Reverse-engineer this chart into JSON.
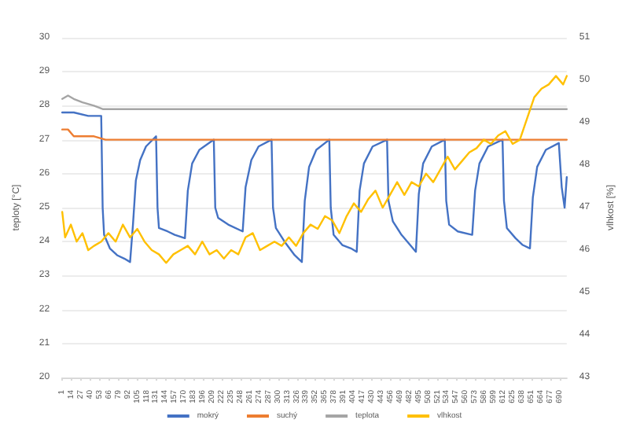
{
  "chart_data": {
    "type": "line",
    "ylabel": "teploty [°C]",
    "y2label": "vlhkost [%]",
    "xlim": [
      1,
      700
    ],
    "xticks": [
      1,
      14,
      27,
      40,
      53,
      66,
      79,
      92,
      105,
      118,
      131,
      144,
      157,
      170,
      183,
      196,
      209,
      222,
      235,
      248,
      261,
      274,
      287,
      300,
      313,
      326,
      339,
      352,
      365,
      378,
      391,
      404,
      417,
      430,
      443,
      456,
      469,
      482,
      495,
      508,
      521,
      534,
      547,
      560,
      573,
      586,
      599,
      612,
      625,
      638,
      651,
      664,
      677,
      690
    ],
    "ylim": [
      20,
      30
    ],
    "yticks": [
      20,
      21,
      22,
      23,
      24,
      25,
      26,
      27,
      28,
      29,
      30
    ],
    "y2lim": [
      43,
      51
    ],
    "y2ticks": [
      43,
      44,
      45,
      46,
      47,
      48,
      49,
      50,
      51
    ],
    "grid": "y",
    "legend": "bottom",
    "marker": "none",
    "line_style": "solid",
    "series": [
      {
        "name": "mokrý",
        "color": "#4472c4",
        "x": [
          1,
          17,
          37,
          55,
          57,
          59,
          67,
          77,
          87,
          95,
          99,
          103,
          109,
          117,
          131,
          133,
          135,
          147,
          157,
          171,
          175,
          181,
          191,
          211,
          213,
          217,
          231,
          251,
          255,
          263,
          273,
          291,
          293,
          297,
          309,
          323,
          333,
          337,
          343,
          353,
          371,
          373,
          377,
          389,
          401,
          409,
          413,
          419,
          431,
          451,
          453,
          459,
          471,
          483,
          491,
          495,
          501,
          513,
          531,
          533,
          537,
          549,
          569,
          573,
          579,
          591,
          611,
          613,
          617,
          629,
          639,
          649,
          653,
          659,
          671,
          689,
          693,
          697,
          700
        ],
        "values": [
          27.8,
          27.8,
          27.7,
          27.7,
          25.0,
          24.2,
          23.8,
          23.6,
          23.5,
          23.4,
          24.5,
          25.8,
          26.4,
          26.8,
          27.1,
          25.0,
          24.4,
          24.3,
          24.2,
          24.1,
          25.5,
          26.3,
          26.7,
          27.0,
          25.0,
          24.7,
          24.5,
          24.3,
          25.6,
          26.4,
          26.8,
          27.0,
          25.0,
          24.4,
          24.0,
          23.6,
          23.4,
          25.2,
          26.2,
          26.7,
          27.0,
          25.0,
          24.2,
          23.9,
          23.8,
          23.7,
          25.5,
          26.3,
          26.8,
          27.0,
          25.2,
          24.6,
          24.2,
          23.9,
          23.7,
          25.4,
          26.3,
          26.8,
          27.0,
          25.2,
          24.5,
          24.3,
          24.2,
          25.5,
          26.3,
          26.8,
          27.0,
          25.2,
          24.4,
          24.1,
          23.9,
          23.8,
          25.3,
          26.2,
          26.7,
          26.9,
          25.6,
          25.0,
          25.9
        ]
      },
      {
        "name": "suchý",
        "color": "#ed7d31",
        "x": [
          1,
          9,
          17,
          29,
          45,
          61,
          100,
          200,
          300,
          400,
          500,
          600,
          700
        ],
        "values": [
          27.3,
          27.3,
          27.1,
          27.1,
          27.1,
          27.0,
          27.0,
          27.0,
          27.0,
          27.0,
          27.0,
          27.0,
          27.0
        ]
      },
      {
        "name": "teplota",
        "color": "#a5a5a5",
        "x": [
          1,
          9,
          17,
          29,
          45,
          57,
          150,
          250,
          350,
          450,
          550,
          650,
          700
        ],
        "values": [
          28.2,
          28.3,
          28.2,
          28.1,
          28.0,
          27.9,
          27.9,
          27.9,
          27.9,
          27.9,
          27.9,
          27.9,
          27.9
        ]
      },
      {
        "name": "vlhkost",
        "color": "#ffc000",
        "axis": "y2",
        "x": [
          1,
          5,
          13,
          21,
          29,
          37,
          45,
          55,
          65,
          75,
          85,
          95,
          105,
          115,
          125,
          135,
          145,
          155,
          165,
          175,
          185,
          195,
          205,
          215,
          225,
          235,
          245,
          255,
          265,
          275,
          285,
          295,
          305,
          315,
          325,
          335,
          345,
          355,
          365,
          375,
          385,
          395,
          405,
          415,
          425,
          435,
          445,
          455,
          465,
          475,
          485,
          495,
          505,
          515,
          525,
          535,
          545,
          555,
          565,
          575,
          585,
          595,
          605,
          615,
          625,
          635,
          645,
          655,
          665,
          675,
          685,
          695,
          700
        ],
        "values": [
          46.9,
          46.3,
          46.6,
          46.2,
          46.4,
          46.0,
          46.1,
          46.2,
          46.4,
          46.2,
          46.6,
          46.3,
          46.5,
          46.2,
          46.0,
          45.9,
          45.7,
          45.9,
          46.0,
          46.1,
          45.9,
          46.2,
          45.9,
          46.0,
          45.8,
          46.0,
          45.9,
          46.3,
          46.4,
          46.0,
          46.1,
          46.2,
          46.1,
          46.3,
          46.1,
          46.4,
          46.6,
          46.5,
          46.8,
          46.7,
          46.4,
          46.8,
          47.1,
          46.9,
          47.2,
          47.4,
          47.0,
          47.3,
          47.6,
          47.3,
          47.6,
          47.5,
          47.8,
          47.6,
          47.9,
          48.2,
          47.9,
          48.1,
          48.3,
          48.4,
          48.6,
          48.5,
          48.7,
          48.8,
          48.5,
          48.6,
          49.1,
          49.6,
          49.8,
          49.9,
          50.1,
          49.9,
          50.1
        ]
      }
    ]
  }
}
